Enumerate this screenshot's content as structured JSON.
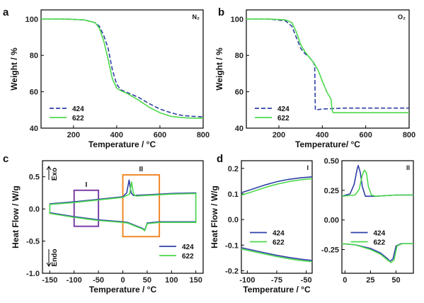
{
  "chart_data": [
    {
      "panel": "a",
      "type": "line",
      "annotation": "N₂",
      "xlabel": "Temperature / °C",
      "ylabel": "Weight / %",
      "xlim": [
        50,
        800
      ],
      "ylim": [
        40,
        105
      ],
      "xticks": [
        200,
        400,
        600,
        800
      ],
      "yticks": [
        40,
        60,
        80,
        100
      ],
      "legend_position": "bottom-left",
      "series": [
        {
          "name": "424",
          "color": "#2f3fa6",
          "dash": true,
          "x": [
            50,
            150,
            250,
            300,
            320,
            340,
            360,
            380,
            400,
            420,
            450,
            500,
            550,
            600,
            650,
            700,
            750,
            800
          ],
          "y": [
            100,
            100,
            99.5,
            98,
            96,
            91,
            84,
            72,
            64,
            61,
            59.5,
            57,
            53.5,
            50.5,
            48.5,
            47,
            46.5,
            46.2
          ]
        },
        {
          "name": "622",
          "color": "#4cd94c",
          "dash": false,
          "x": [
            50,
            150,
            250,
            300,
            320,
            340,
            360,
            380,
            400,
            420,
            450,
            500,
            550,
            600,
            650,
            700,
            750,
            800
          ],
          "y": [
            100,
            100,
            99.5,
            98,
            95,
            88,
            78,
            67,
            62,
            60.5,
            59,
            55.5,
            51.5,
            48.5,
            46.5,
            45.8,
            45.5,
            45.4
          ]
        }
      ]
    },
    {
      "panel": "b",
      "type": "line",
      "annotation": "O₂",
      "xlabel": "Temperature/ °C",
      "ylabel": "Weight / %",
      "xlim": [
        50,
        800
      ],
      "ylim": [
        40,
        105
      ],
      "xticks": [
        200,
        400,
        600,
        800
      ],
      "yticks": [
        40,
        60,
        80,
        100
      ],
      "legend_position": "bottom-left",
      "series": [
        {
          "name": "424",
          "color": "#2f3fa6",
          "dash": true,
          "x": [
            50,
            150,
            230,
            260,
            280,
            300,
            320,
            340,
            360,
            365,
            368,
            400,
            500,
            600,
            700,
            800
          ],
          "y": [
            100,
            100,
            99,
            96,
            90,
            84,
            81,
            79,
            76,
            74,
            50,
            50.5,
            51,
            51,
            51,
            51
          ]
        },
        {
          "name": "622",
          "color": "#4cd94c",
          "dash": false,
          "x": [
            50,
            150,
            230,
            260,
            280,
            300,
            320,
            340,
            360,
            380,
            400,
            420,
            440,
            445,
            450,
            500,
            600,
            700,
            800
          ],
          "y": [
            100,
            100,
            99.5,
            98,
            93,
            86,
            82,
            79,
            76,
            72,
            66,
            60,
            56,
            50,
            48.5,
            48.5,
            48.5,
            48.5,
            48.5
          ]
        }
      ]
    },
    {
      "panel": "c",
      "type": "line",
      "xlabel": "Temperature / °C",
      "ylabel": "Heat Flow / W/g",
      "xlim": [
        -165,
        165
      ],
      "ylim": [
        -1.0,
        0.75
      ],
      "xticks": [
        -150,
        -100,
        -50,
        0,
        50,
        100,
        150
      ],
      "yticks": [
        -1.0,
        -0.5,
        0.0,
        0.5
      ],
      "exo_label": "Exo",
      "endo_label": "Endo",
      "boxes": [
        {
          "label": "I",
          "x": [
            -100,
            -50
          ],
          "y": [
            -0.27,
            0.29
          ],
          "color": "#7b3fa8"
        },
        {
          "label": "II",
          "x": [
            0,
            75
          ],
          "y": [
            -0.43,
            0.53
          ],
          "color": "#f0882a"
        }
      ],
      "legend_position": "bottom-right",
      "series": [
        {
          "name": "424",
          "color": "#2f3fa6",
          "x": [
            -150,
            -150,
            -100,
            -50,
            0,
            8,
            13,
            17,
            22,
            50,
            100,
            150,
            150,
            100,
            75,
            50,
            45,
            40,
            30,
            10,
            0,
            -50,
            -100,
            -150,
            -150
          ],
          "y": [
            0.04,
            0.08,
            0.11,
            0.15,
            0.19,
            0.25,
            0.45,
            0.25,
            0.21,
            0.22,
            0.24,
            0.25,
            -0.2,
            -0.2,
            -0.2,
            -0.22,
            -0.33,
            -0.3,
            -0.27,
            -0.21,
            -0.2,
            -0.17,
            -0.12,
            -0.06,
            0.04
          ]
        },
        {
          "name": "622",
          "color": "#4cd94c",
          "x": [
            -150,
            -150,
            -100,
            -50,
            0,
            14,
            18,
            22,
            27,
            50,
            100,
            150,
            150,
            100,
            75,
            50,
            45,
            40,
            30,
            10,
            0,
            -50,
            -100,
            -150,
            -150
          ],
          "y": [
            0.04,
            0.07,
            0.1,
            0.14,
            0.18,
            0.23,
            0.42,
            0.23,
            0.2,
            0.21,
            0.23,
            0.24,
            -0.21,
            -0.21,
            -0.21,
            -0.23,
            -0.34,
            -0.31,
            -0.28,
            -0.22,
            -0.21,
            -0.18,
            -0.13,
            -0.07,
            0.04
          ]
        }
      ]
    },
    {
      "panel": "d-I",
      "type": "line",
      "annotation": "I",
      "xlabel": "Temperature / °C",
      "ylabel": "Heat Flow / W/g",
      "xlim": [
        -105,
        -45
      ],
      "ylim": [
        -0.21,
        0.23
      ],
      "xticks": [
        -100,
        -75,
        -50
      ],
      "yticks": [
        -0.2,
        -0.1,
        0.0,
        0.1,
        0.2
      ],
      "legend_position": "middle-center",
      "series": [
        {
          "name": "424",
          "color": "#2f3fa6",
          "x": [
            -105,
            -95,
            -85,
            -75,
            -65,
            -55,
            -45
          ],
          "y": [
            0.105,
            0.12,
            0.135,
            0.148,
            0.157,
            0.163,
            0.167
          ],
          "x2": [
            -105,
            -95,
            -85,
            -75,
            -65,
            -55,
            -45
          ],
          "y2": [
            -0.11,
            -0.12,
            -0.13,
            -0.14,
            -0.148,
            -0.155,
            -0.16
          ]
        },
        {
          "name": "622",
          "color": "#4cd94c",
          "x": [
            -105,
            -95,
            -85,
            -75,
            -65,
            -55,
            -45
          ],
          "y": [
            0.095,
            0.11,
            0.125,
            0.138,
            0.148,
            0.155,
            0.16
          ],
          "x2": [
            -105,
            -95,
            -85,
            -75,
            -65,
            -55,
            -45
          ],
          "y2": [
            -0.115,
            -0.125,
            -0.135,
            -0.145,
            -0.153,
            -0.16,
            -0.165
          ]
        }
      ]
    },
    {
      "panel": "d-II",
      "type": "line",
      "annotation": "II",
      "xlabel": "",
      "ylabel": "",
      "xlim": [
        -3,
        67
      ],
      "ylim": [
        -0.45,
        0.5
      ],
      "xticks": [
        0,
        25,
        50
      ],
      "yticks": [
        -0.25,
        0.0,
        0.25,
        0.5
      ],
      "legend_position": "middle-center",
      "series": [
        {
          "name": "424",
          "color": "#2f3fa6",
          "x": [
            -3,
            5,
            9,
            12,
            13,
            15,
            17,
            20,
            30,
            50,
            67
          ],
          "y": [
            0.2,
            0.22,
            0.3,
            0.43,
            0.46,
            0.4,
            0.28,
            0.2,
            0.2,
            0.21,
            0.21
          ],
          "x2": [
            -3,
            10,
            25,
            35,
            42,
            44,
            47,
            50,
            55,
            67
          ],
          "y2": [
            -0.2,
            -0.21,
            -0.24,
            -0.28,
            -0.33,
            -0.35,
            -0.33,
            -0.22,
            -0.2,
            -0.2
          ]
        },
        {
          "name": "622",
          "color": "#4cd94c",
          "x": [
            -3,
            10,
            14,
            17,
            19,
            21,
            23,
            26,
            30,
            50,
            67
          ],
          "y": [
            0.2,
            0.21,
            0.26,
            0.38,
            0.42,
            0.4,
            0.28,
            0.21,
            0.2,
            0.21,
            0.21
          ],
          "x2": [
            -3,
            10,
            25,
            35,
            42,
            45,
            48,
            51,
            56,
            67
          ],
          "y2": [
            -0.2,
            -0.21,
            -0.25,
            -0.29,
            -0.34,
            -0.36,
            -0.34,
            -0.22,
            -0.2,
            -0.2
          ]
        }
      ]
    }
  ]
}
